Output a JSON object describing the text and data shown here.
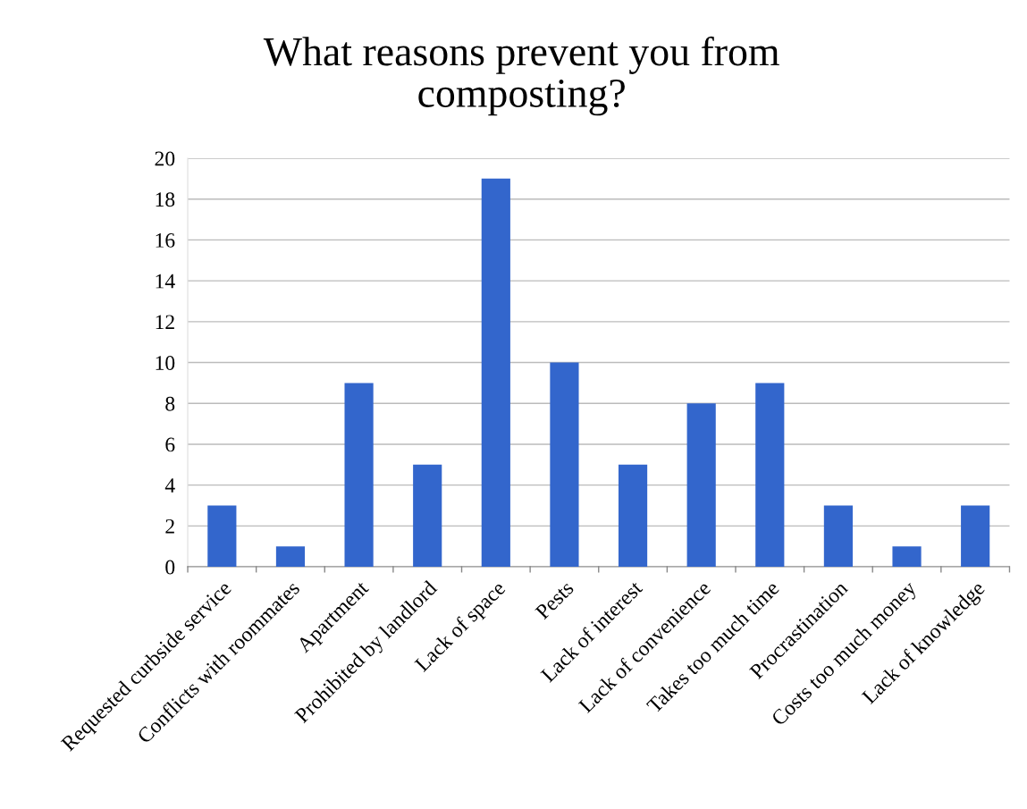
{
  "chart_data": {
    "type": "bar",
    "title": "What reasons prevent you from\ncomposting?",
    "categories": [
      "Requested curbside service",
      "Conflicts with roommates",
      "Apartment",
      "Prohibited by landlord",
      "Lack of space",
      "Pests",
      "Lack of interest",
      "Lack of convenience",
      "Takes too much time",
      "Procrastination",
      "Costs too much money",
      "Lack of knowledge"
    ],
    "values": [
      3,
      1,
      9,
      5,
      19,
      10,
      5,
      8,
      9,
      3,
      1,
      3
    ],
    "color": "#3366cc",
    "ylim": [
      0,
      20
    ],
    "yticks": [
      0,
      2,
      4,
      6,
      8,
      10,
      12,
      14,
      16,
      18,
      20
    ],
    "grid": "y",
    "legend": false
  }
}
